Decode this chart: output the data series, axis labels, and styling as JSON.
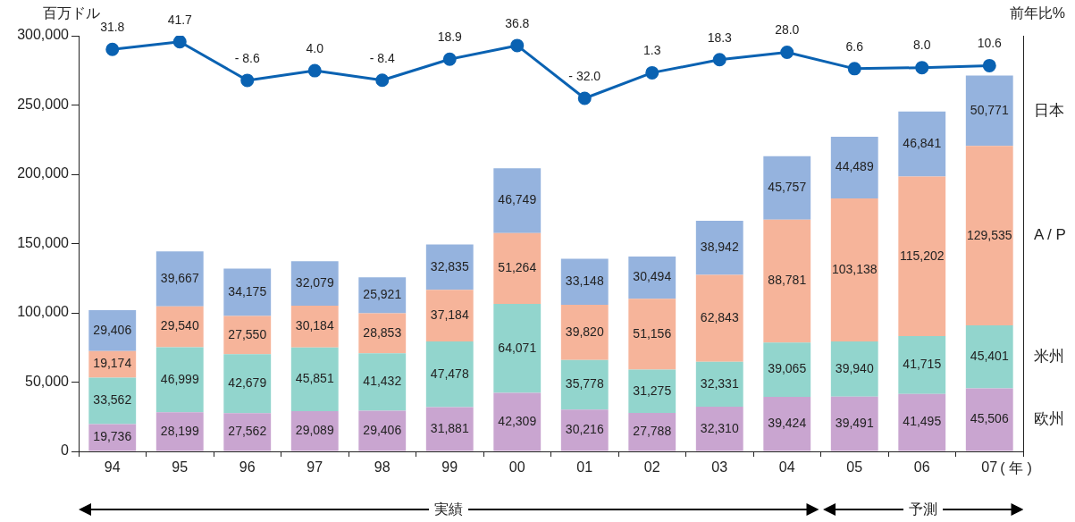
{
  "chart_data": {
    "type": "bar",
    "stacked": true,
    "ylabel": "百万ドル",
    "y2label": "前年比%",
    "categories": [
      "94",
      "95",
      "96",
      "97",
      "98",
      "99",
      "00",
      "01",
      "02",
      "03",
      "04",
      "05",
      "06",
      "07"
    ],
    "ylim": [
      0,
      300000
    ],
    "yticks": [
      {
        "value": 0,
        "label": "0"
      },
      {
        "value": 50000,
        "label": "50,000"
      },
      {
        "value": 100000,
        "label": "100,000"
      },
      {
        "value": 150000,
        "label": "150,000"
      },
      {
        "value": 200000,
        "label": "200,000"
      },
      {
        "value": 250000,
        "label": "250,000"
      },
      {
        "value": 300000,
        "label": "300,000"
      }
    ],
    "y2lim": [
      -492,
      49.5
    ],
    "grid": false,
    "legend": false,
    "series": [
      {
        "name": "欧州",
        "color": "#c9a5d0",
        "values": [
          19736,
          28199,
          27562,
          29089,
          29406,
          31881,
          42309,
          30216,
          27788,
          32310,
          39424,
          39491,
          41495,
          45506
        ],
        "value_labels": [
          "19,736",
          "28,199",
          "27,562",
          "29,089",
          "29,406",
          "31,881",
          "42,309",
          "30,216",
          "27,788",
          "32,310",
          "39,424",
          "39,491",
          "41,495",
          "45,506"
        ]
      },
      {
        "name": "米州",
        "color": "#92d5cd",
        "values": [
          33562,
          46999,
          42679,
          45851,
          41432,
          47478,
          64071,
          35778,
          31275,
          32331,
          39065,
          39940,
          41715,
          45401
        ],
        "value_labels": [
          "33,562",
          "46,999",
          "42,679",
          "45,851",
          "41,432",
          "47,478",
          "64,071",
          "35,778",
          "31,275",
          "32,331",
          "39,065",
          "39,940",
          "41,715",
          "45,401"
        ]
      },
      {
        "name": "A / P",
        "color": "#f6b49a",
        "values": [
          19174,
          29540,
          27550,
          30184,
          28853,
          37184,
          51264,
          39820,
          51156,
          62843,
          88781,
          103138,
          115202,
          129535
        ],
        "value_labels": [
          "19,174",
          "29,540",
          "27,550",
          "30,184",
          "28,853",
          "37,184",
          "51,264",
          "39,820",
          "51,156",
          "62,843",
          "88,781",
          "103,138",
          "115,202",
          "129,535"
        ]
      },
      {
        "name": "日本",
        "color": "#95b3de",
        "values": [
          29406,
          39667,
          34175,
          32079,
          25921,
          32835,
          46749,
          33148,
          30494,
          38942,
          45757,
          44489,
          46841,
          50771
        ],
        "value_labels": [
          "29,406",
          "39,667",
          "34,175",
          "32,079",
          "25,921",
          "32,835",
          "46,749",
          "33,148",
          "30,494",
          "38,942",
          "45,757",
          "44,489",
          "46,841",
          "50,771"
        ]
      },
      {
        "type": "line",
        "axis": "y2",
        "color": "#0a62b2",
        "marker": "circle",
        "line_style": "solid",
        "values": [
          31.8,
          41.7,
          -8.6,
          4.0,
          -8.4,
          18.9,
          36.8,
          -32.0,
          1.3,
          18.3,
          28.0,
          6.6,
          8.0,
          10.6
        ],
        "value_labels": [
          "31.8",
          "41.7",
          "- 8.6",
          "4.0",
          "- 8.4",
          "18.9",
          "36.8",
          "- 32.0",
          "1.3",
          "18.3",
          "28.0",
          "6.6",
          "8.0",
          "10.6"
        ]
      }
    ],
    "annotations": [
      "( 年 )",
      "実績",
      "予測"
    ]
  }
}
